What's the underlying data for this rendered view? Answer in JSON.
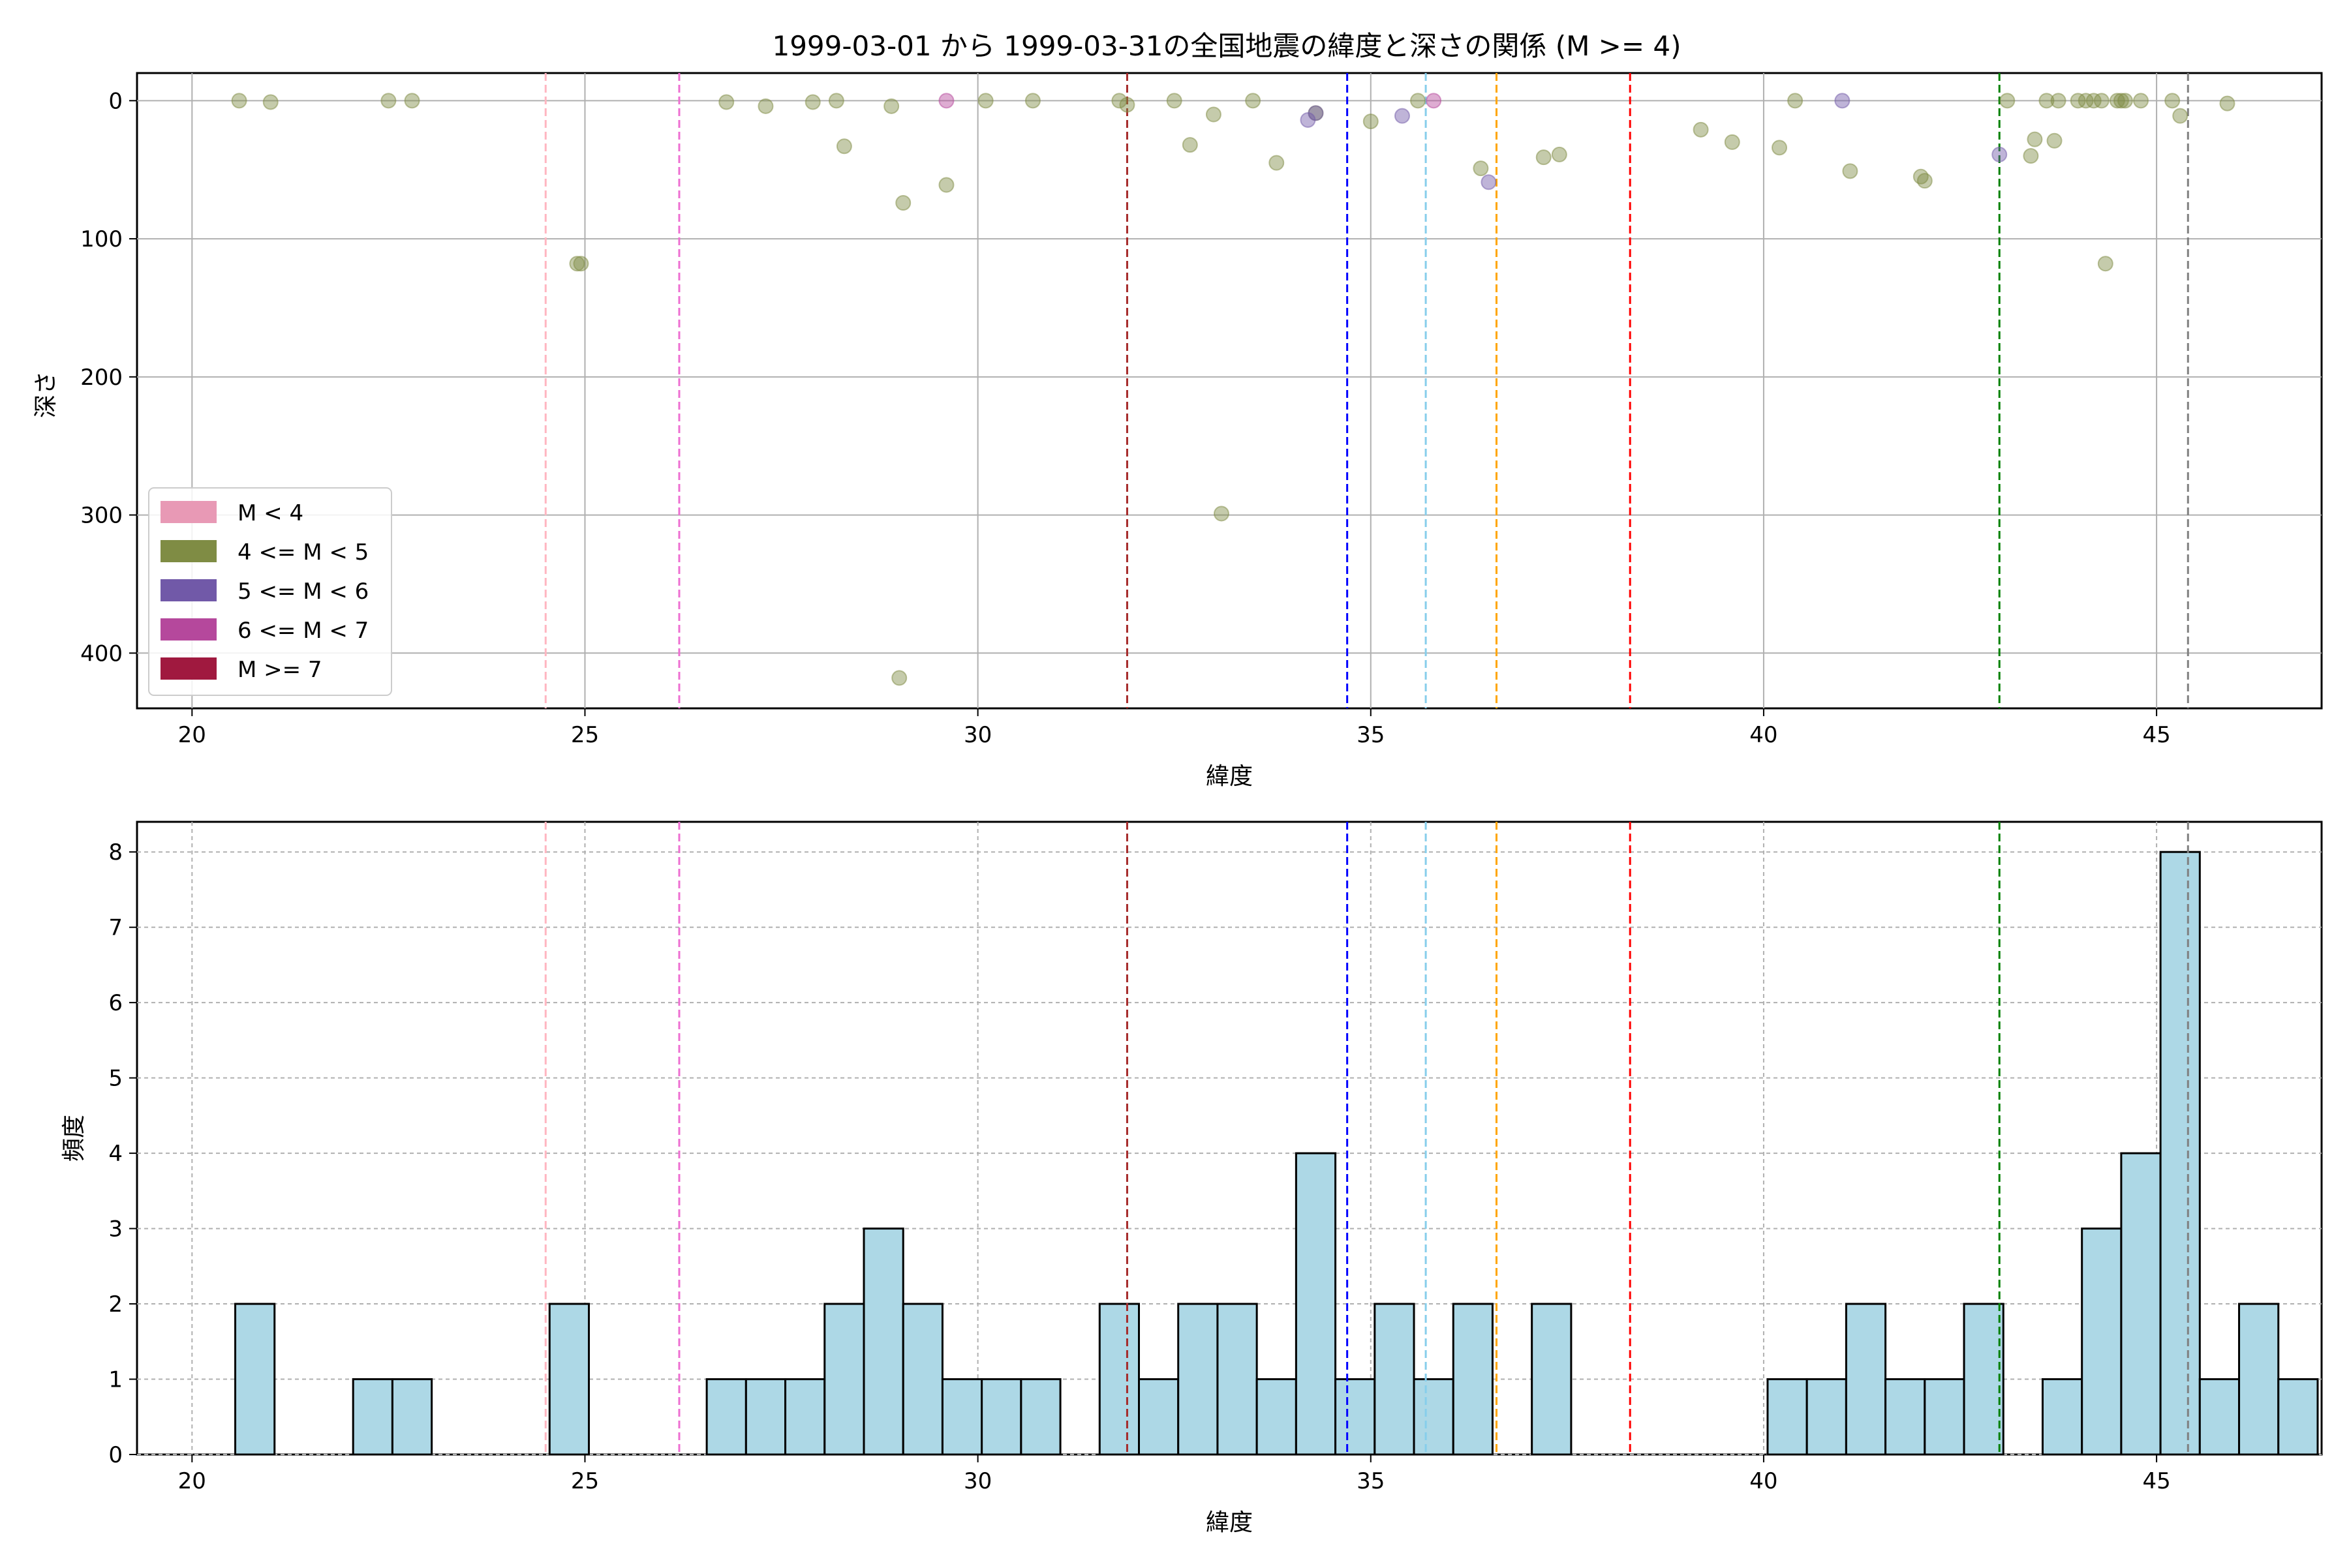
{
  "figure": {
    "title": "1999-03-01 から 1999-03-31の全国地震の緯度と深さの関係 (M >= 4)"
  },
  "chart_data": [
    {
      "type": "scatter",
      "xlabel": "緯度",
      "ylabel": "深さ",
      "xlim": [
        19.3,
        47.1
      ],
      "ylim": [
        440,
        -20
      ],
      "y_inverted": true,
      "xticks": [
        20,
        25,
        30,
        35,
        40,
        45
      ],
      "yticks": [
        0,
        100,
        200,
        300,
        400
      ],
      "grid": true,
      "legend_placement": "lower-left",
      "legend": [
        {
          "label": "M < 4",
          "color": "#e899b5"
        },
        {
          "label": "4 <= M < 5",
          "color": "#7f8c44"
        },
        {
          "label": "5 <= M < 6",
          "color": "#7159a8"
        },
        {
          "label": "6 <= M < 7",
          "color": "#b5489c"
        },
        {
          "label": "M >= 7",
          "color": "#a0193f"
        }
      ],
      "reference_lines": [
        {
          "x": 24.5,
          "color": "#ffb6c1"
        },
        {
          "x": 26.2,
          "color": "#ee6fd2"
        },
        {
          "x": 31.9,
          "color": "#a52a2a"
        },
        {
          "x": 34.7,
          "color": "#0000ff"
        },
        {
          "x": 35.7,
          "color": "#87ceeb"
        },
        {
          "x": 36.6,
          "color": "#ffa500"
        },
        {
          "x": 38.3,
          "color": "#ff0000"
        },
        {
          "x": 43.0,
          "color": "#008000"
        },
        {
          "x": 45.4,
          "color": "#808080"
        }
      ],
      "series": [
        {
          "name": "4 <= M < 5",
          "color": "#7f8c44",
          "points": [
            [
              20.6,
              0
            ],
            [
              21.0,
              1
            ],
            [
              22.5,
              0
            ],
            [
              22.8,
              0
            ],
            [
              24.9,
              118
            ],
            [
              24.95,
              118
            ],
            [
              26.8,
              1
            ],
            [
              27.3,
              4
            ],
            [
              27.9,
              1
            ],
            [
              28.2,
              0
            ],
            [
              28.3,
              33
            ],
            [
              28.9,
              4
            ],
            [
              29.0,
              418
            ],
            [
              29.05,
              74
            ],
            [
              29.6,
              61
            ],
            [
              30.1,
              0
            ],
            [
              30.7,
              0
            ],
            [
              31.8,
              0
            ],
            [
              31.9,
              3
            ],
            [
              32.5,
              0
            ],
            [
              32.7,
              32
            ],
            [
              33.0,
              10
            ],
            [
              33.1,
              299
            ],
            [
              33.5,
              0
            ],
            [
              33.8,
              45
            ],
            [
              34.3,
              9
            ],
            [
              35.0,
              15
            ],
            [
              35.6,
              0
            ],
            [
              36.4,
              49
            ],
            [
              37.2,
              41
            ],
            [
              37.4,
              39
            ],
            [
              39.2,
              21
            ],
            [
              39.6,
              30
            ],
            [
              40.2,
              34
            ],
            [
              40.4,
              0
            ],
            [
              41.1,
              51
            ],
            [
              42.0,
              55
            ],
            [
              42.05,
              58
            ],
            [
              43.1,
              0
            ],
            [
              43.4,
              40
            ],
            [
              43.45,
              28
            ],
            [
              43.6,
              0
            ],
            [
              43.7,
              29
            ],
            [
              43.75,
              0
            ],
            [
              44.0,
              0
            ],
            [
              44.1,
              0
            ],
            [
              44.2,
              0
            ],
            [
              44.3,
              0
            ],
            [
              44.35,
              118
            ],
            [
              44.5,
              0
            ],
            [
              44.55,
              0
            ],
            [
              44.6,
              0
            ],
            [
              44.8,
              0
            ],
            [
              45.2,
              0
            ],
            [
              45.3,
              11
            ],
            [
              45.9,
              2
            ]
          ]
        },
        {
          "name": "5 <= M < 6",
          "color": "#7159a8",
          "points": [
            [
              34.2,
              14
            ],
            [
              34.3,
              9
            ],
            [
              35.4,
              11
            ],
            [
              36.5,
              59
            ],
            [
              41.0,
              0
            ],
            [
              43.0,
              39
            ]
          ]
        },
        {
          "name": "6 <= M < 7",
          "color": "#b5489c",
          "points": [
            [
              29.6,
              0
            ],
            [
              35.8,
              0
            ]
          ]
        }
      ]
    },
    {
      "type": "bar",
      "subtype": "histogram",
      "xlabel": "緯度",
      "ylabel": "頻度",
      "xlim": [
        19.3,
        47.1
      ],
      "ylim": [
        0,
        8.4
      ],
      "xticks": [
        20,
        25,
        30,
        35,
        40,
        45
      ],
      "yticks": [
        0,
        1,
        2,
        3,
        4,
        5,
        6,
        7,
        8
      ],
      "grid": true,
      "bar_color": "#add8e6",
      "bin_start": 20.55,
      "bin_width": 0.5,
      "counts": [
        2,
        0,
        0,
        1,
        1,
        0,
        0,
        0,
        2,
        0,
        0,
        0,
        1,
        1,
        1,
        2,
        3,
        2,
        1,
        1,
        1,
        0,
        2,
        1,
        2,
        2,
        1,
        4,
        1,
        2,
        1,
        2,
        0,
        2,
        0,
        0,
        0,
        0,
        0,
        1,
        1,
        2,
        1,
        1,
        2,
        0,
        1,
        3,
        4,
        8,
        1,
        2,
        1
      ],
      "reference_lines": [
        {
          "x": 24.5,
          "color": "#ffb6c1"
        },
        {
          "x": 26.2,
          "color": "#ee6fd2"
        },
        {
          "x": 31.9,
          "color": "#a52a2a"
        },
        {
          "x": 34.7,
          "color": "#0000ff"
        },
        {
          "x": 35.7,
          "color": "#87ceeb"
        },
        {
          "x": 36.6,
          "color": "#ffa500"
        },
        {
          "x": 38.3,
          "color": "#ff0000"
        },
        {
          "x": 43.0,
          "color": "#008000"
        },
        {
          "x": 45.4,
          "color": "#808080"
        }
      ]
    }
  ]
}
